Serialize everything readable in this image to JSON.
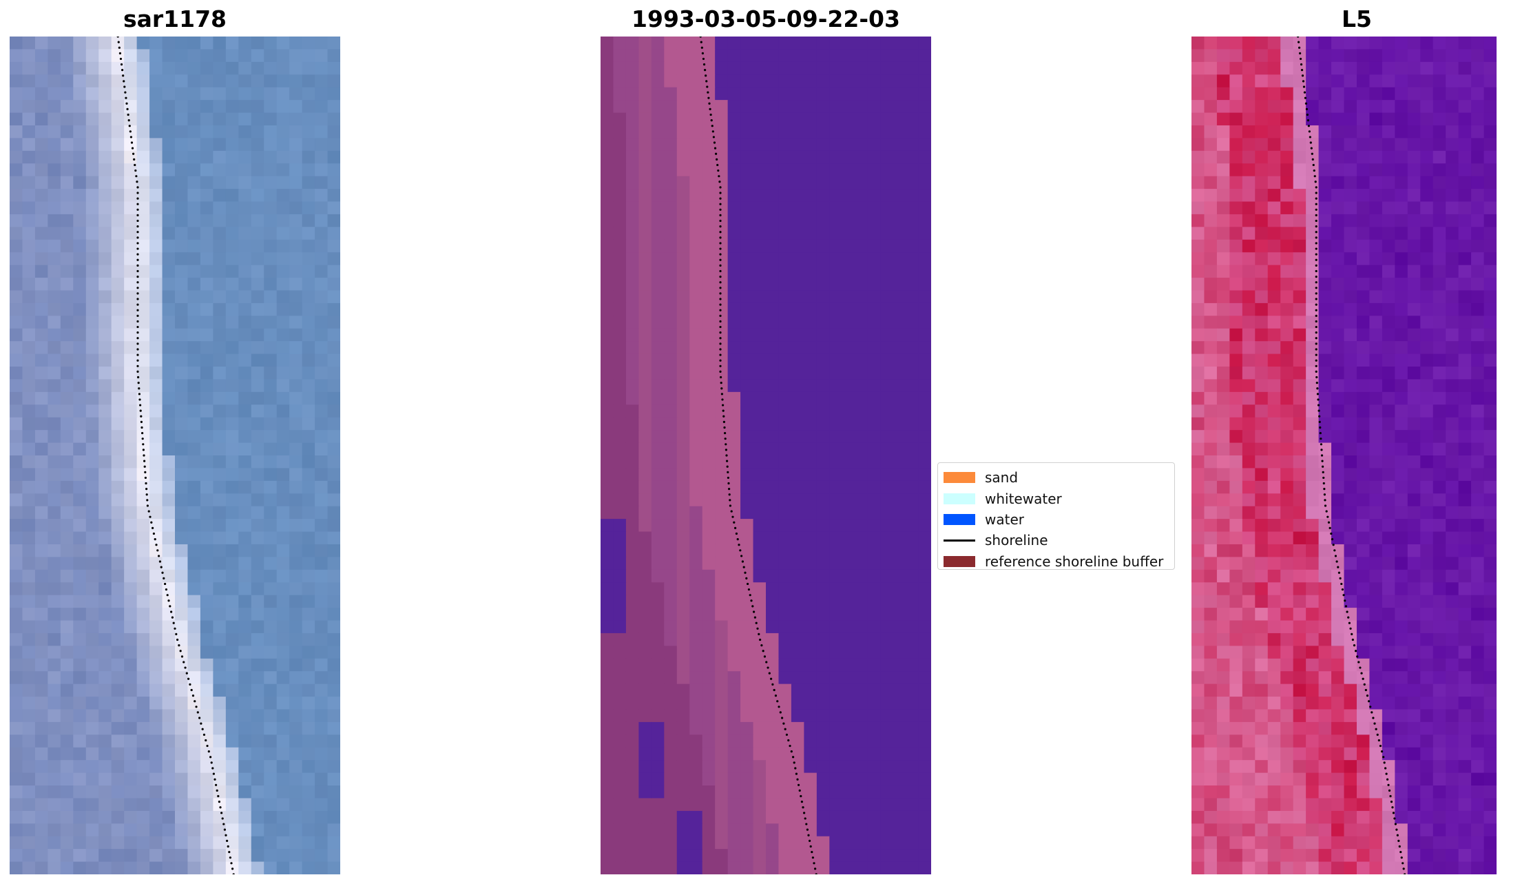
{
  "titles": {
    "left": "sar1178",
    "middle": "1993-03-05-09-22-03",
    "right": "L5"
  },
  "legend": [
    {
      "label": "sand",
      "type": "patch",
      "color": "#fc8a3a"
    },
    {
      "label": "whitewater",
      "type": "patch",
      "color": "#ccffff"
    },
    {
      "label": "water",
      "type": "patch",
      "color": "#0055ff"
    },
    {
      "label": "shoreline",
      "type": "line",
      "color": "#000000"
    },
    {
      "label": "reference shoreline buffer",
      "type": "patch",
      "color": "#8b2a2e"
    }
  ],
  "colors": {
    "classified_land": "#8a3a7c",
    "classified_land_light": "#b35890",
    "classified_water": "#55239a",
    "rgb_water": "#6a8fbf",
    "rgb_surf": "#f2eef6",
    "mndwi_land": "#c4124a",
    "mndwi_water": "#5a0ea4"
  }
}
